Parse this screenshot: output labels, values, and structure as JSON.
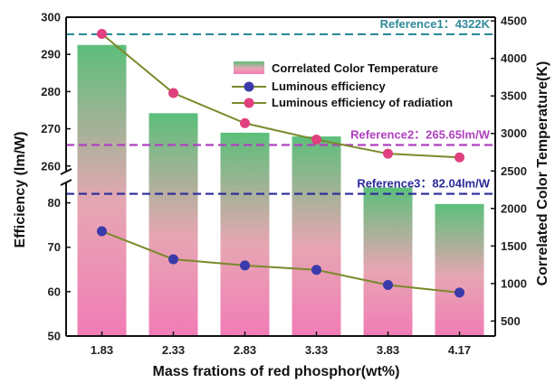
{
  "chart_data": {
    "type": "bar",
    "xlabel": "Mass frations of red phosphor(wt%)",
    "ylabel_left": "Efficiency (lm/W)",
    "ylabel_right": "Correlated Color Temperature(K)",
    "categories": [
      "1.83",
      "2.33",
      "2.83",
      "3.33",
      "3.83",
      "4.17"
    ],
    "left_axis": {
      "lower_segment": {
        "range": [
          50,
          85
        ],
        "ticks": [
          "50",
          "60",
          "70",
          "80"
        ]
      },
      "upper_segment": {
        "range": [
          258,
          300
        ],
        "ticks": [
          "260",
          "270",
          "280",
          "290",
          "300"
        ]
      },
      "broken": true
    },
    "right_axis": {
      "range": [
        300,
        4550
      ],
      "ticks": [
        "500",
        "1000",
        "1500",
        "2000",
        "2500",
        "3000",
        "3500",
        "4000",
        "4500"
      ]
    },
    "series": [
      {
        "name": "Correlated Color Temperature",
        "kind": "bar",
        "axis": "right",
        "values": [
          4180,
          3270,
          3010,
          2960,
          2280,
          2060
        ],
        "color_top": "#5cbf7a",
        "color_bottom": "#f088b8"
      },
      {
        "name": "Luminous efficiency",
        "kind": "line",
        "axis": "left",
        "values": [
          73.6,
          67.3,
          65.9,
          64.9,
          61.5,
          59.8
        ],
        "marker_color": "#3a3aaa",
        "line_color": "#7a8a2a"
      },
      {
        "name": "Luminous efficiency of radiation",
        "kind": "line",
        "axis": "left",
        "values": [
          295.5,
          279.6,
          271.5,
          267.1,
          263.3,
          262.3
        ],
        "marker_color": "#e0407e",
        "line_color": "#7a8a2a"
      }
    ],
    "references": [
      {
        "label": "Reference1：4322K",
        "axis": "right",
        "value": 4322,
        "color": "#2e8a99"
      },
      {
        "label": "Reference2：265.65lm/W",
        "axis": "left",
        "value": 265.65,
        "color": "#b040c0"
      },
      {
        "label": "Reference3：82.04lm/W",
        "axis": "left",
        "value": 82.04,
        "color": "#2a2a9a"
      }
    ],
    "legend_position": "top-right",
    "grid": false
  }
}
